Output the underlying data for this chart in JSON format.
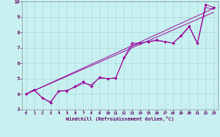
{
  "title": "",
  "xlabel": "Windchill (Refroidissement éolien,°C)",
  "ylabel": "",
  "bg_color": "#c8f0f0",
  "grid_color": "#a8d8d8",
  "line_color": "#990099",
  "xlim": [
    -0.5,
    23.5
  ],
  "ylim": [
    3,
    10
  ],
  "xticks": [
    0,
    1,
    2,
    3,
    4,
    5,
    6,
    7,
    8,
    9,
    10,
    11,
    12,
    13,
    14,
    15,
    16,
    17,
    18,
    19,
    20,
    21,
    22,
    23
  ],
  "yticks": [
    3,
    4,
    5,
    6,
    7,
    8,
    9,
    10
  ],
  "line1_x": [
    0,
    1,
    2,
    3,
    4,
    5,
    6,
    7,
    8,
    9,
    10,
    11,
    12,
    13,
    14,
    15,
    16,
    17,
    18,
    19,
    20,
    21,
    22,
    23
  ],
  "line1_y": [
    4.0,
    4.3,
    3.75,
    3.45,
    4.2,
    4.2,
    4.5,
    4.8,
    4.5,
    5.1,
    5.0,
    5.05,
    6.35,
    7.3,
    7.3,
    7.4,
    7.5,
    7.4,
    7.3,
    7.8,
    8.4,
    7.3,
    9.8,
    9.6
  ],
  "line2_x": [
    0,
    1,
    2,
    3,
    4,
    5,
    6,
    7,
    8,
    9,
    10,
    11,
    12,
    13,
    14,
    15,
    16,
    17,
    18,
    19,
    20,
    21,
    22,
    23
  ],
  "line2_y": [
    4.0,
    4.25,
    3.75,
    3.5,
    4.2,
    4.25,
    4.45,
    4.7,
    4.6,
    5.05,
    5.0,
    5.05,
    6.3,
    7.1,
    7.3,
    7.4,
    7.45,
    7.4,
    7.3,
    7.75,
    8.35,
    7.25,
    9.6,
    9.5
  ],
  "line3_x": [
    0,
    23
  ],
  "line3_y": [
    4.0,
    9.55
  ],
  "line4_x": [
    0,
    23
  ],
  "line4_y": [
    4.0,
    9.3
  ]
}
